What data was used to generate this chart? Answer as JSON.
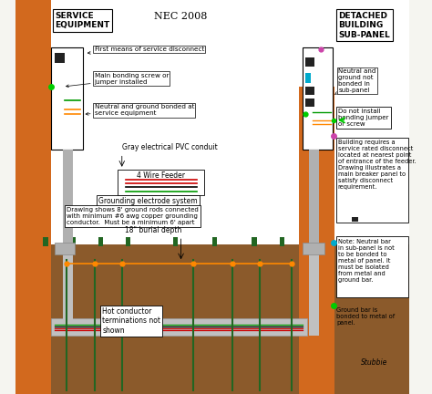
{
  "title": "NEC 2008",
  "bg_color": "#f5f5f0",
  "labels": {
    "service_equip": "SERVICE\nEQUIPMENT",
    "detached_subpanel": "DETACHED\nBUILDING\nSUB-PANEL",
    "first_means": "First means of service disconnect",
    "main_bonding": "Main bonding screw or\njumper installed",
    "neutral_ground_bonded": "Neutral and ground bonded at\nservice equipment",
    "gray_conduit": "Gray electrical PVC conduit",
    "four_wire": "4 Wire Feeder",
    "grounding_electrode": "Grounding electrode system",
    "drawing_shows": "Drawing shows 8' ground rods connected\nwith minimum #6 awg copper grounding\nconductor.  Must be a minimum 6' apart",
    "burial_depth": "18\" burial depth",
    "hot_conductor": "Hot conductor\nterminations not\nshown",
    "neutral_not_bonded": "Neutral and\nground not\nbonded in\nsub-panel",
    "do_not_install": "Do not install\nbonding jumper\nor screw",
    "building_requires": "Building requires a\nservice rated disconnect\nlocated at nearest point\nof entrance of the feeder.\nDrawing illustrates a\nmain breaker panel to\nsatisfy disconnect\nrequirement.",
    "note_neutral": "Note: Neutral bar\nin sub-panel is not\nto be bonded to\nmetal of panel. It\nmust be isolated\nfrom metal and\nground bar.",
    "ground_bar": "Ground bar is\nbonded to metal of\npanel.",
    "stubbie": "Stubbie"
  }
}
